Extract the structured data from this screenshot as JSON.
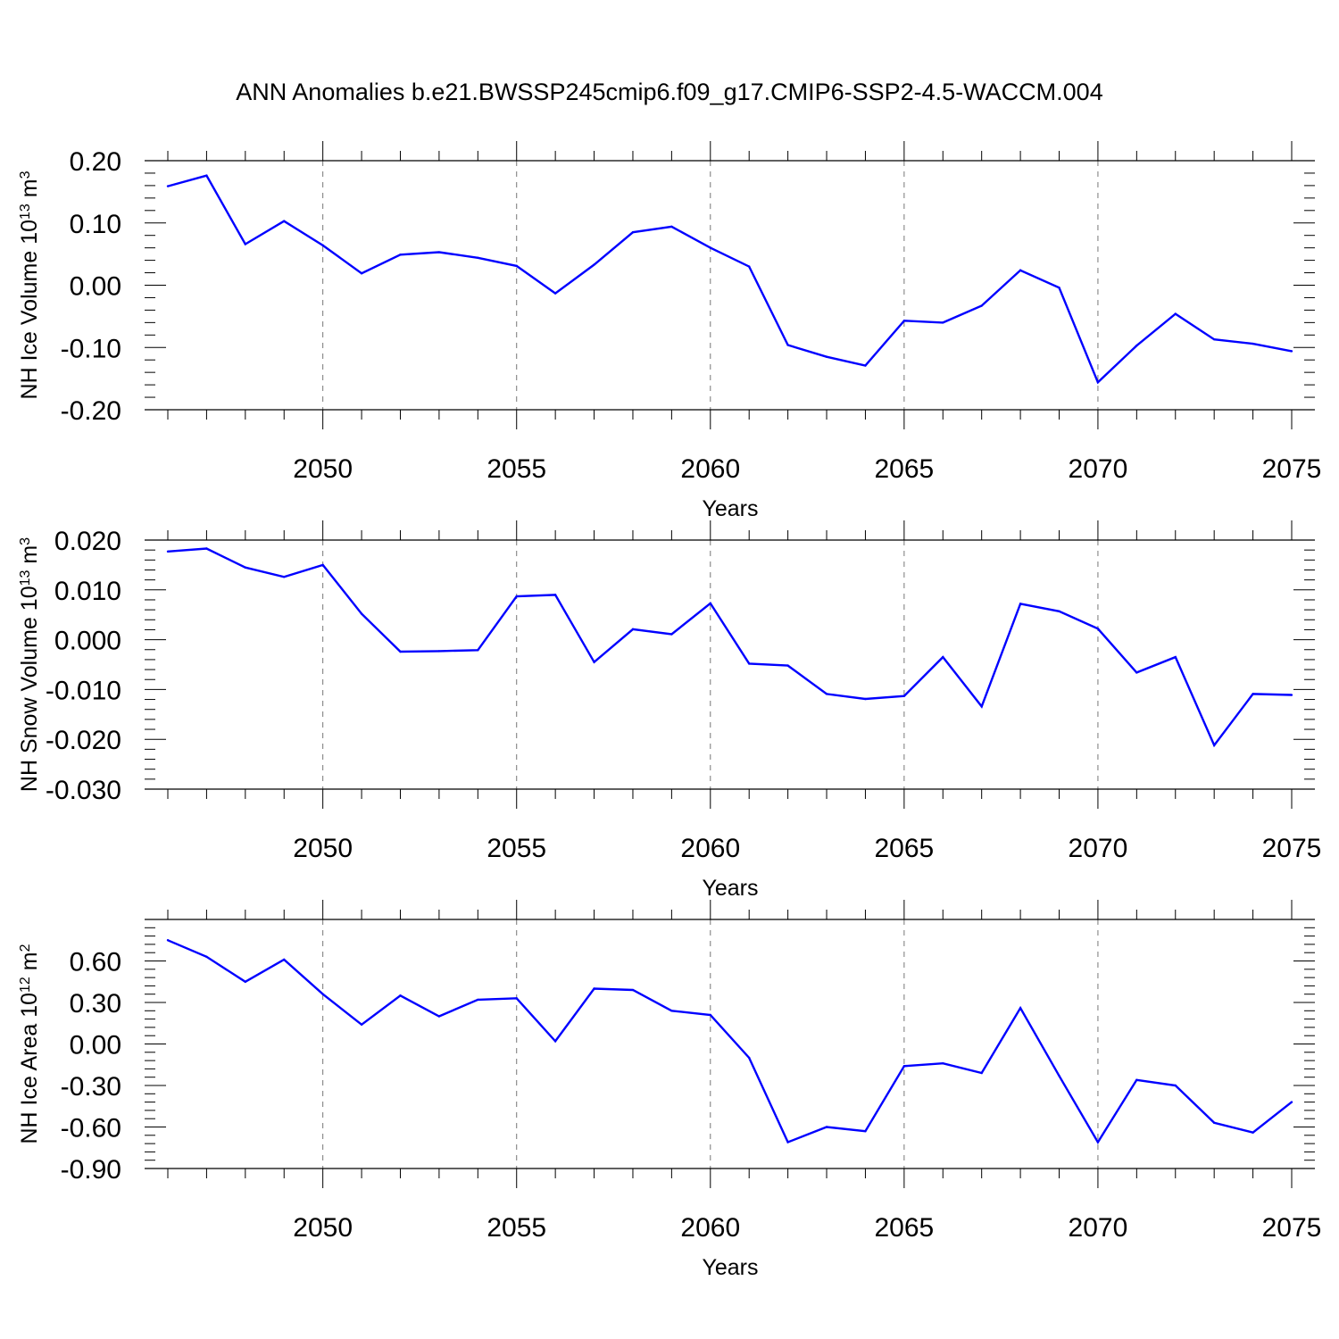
{
  "title": "ANN Anomalies b.e21.BWSSP245cmip6.f09_g17.CMIP6-SSP2-4.5-WACCM.004",
  "colors": {
    "line": "#0000ff",
    "axis": "#000000",
    "grid": "#777777"
  },
  "chart_data": [
    {
      "type": "line",
      "ylabel_main": "NH Ice Volume 10",
      "ylabel_exp": "13",
      "ylabel_unit": " m",
      "ylabel_unit_exp": "3",
      "xlabel": "Years",
      "xlim": [
        2046,
        2075
      ],
      "ylim": [
        -0.2,
        0.2
      ],
      "yticks": [
        -0.2,
        -0.1,
        0.0,
        0.1,
        0.2
      ],
      "ytick_labels": [
        "-0.20",
        "-0.10",
        "0.00",
        "0.10",
        "0.20"
      ],
      "xticks": [
        2050,
        2055,
        2060,
        2065,
        2070,
        2075
      ],
      "xtick_labels": [
        "2050",
        "2055",
        "2060",
        "2065",
        "2070",
        "2075"
      ],
      "x": [
        2046,
        2047,
        2048,
        2049,
        2050,
        2051,
        2052,
        2053,
        2054,
        2055,
        2056,
        2057,
        2058,
        2059,
        2060,
        2061,
        2062,
        2063,
        2064,
        2065,
        2066,
        2067,
        2068,
        2069,
        2070,
        2071,
        2072,
        2073,
        2074,
        2075
      ],
      "values": [
        0.159,
        0.176,
        0.066,
        0.103,
        0.064,
        0.019,
        0.049,
        0.053,
        0.044,
        0.031,
        -0.013,
        0.033,
        0.085,
        0.094,
        0.06,
        0.03,
        -0.096,
        -0.115,
        -0.129,
        -0.057,
        -0.06,
        -0.033,
        0.024,
        -0.004,
        -0.156,
        -0.097,
        -0.046,
        -0.087,
        -0.094,
        -0.106
      ]
    },
    {
      "type": "line",
      "ylabel_main": "NH Snow Volume 10",
      "ylabel_exp": "13",
      "ylabel_unit": " m",
      "ylabel_unit_exp": "3",
      "xlabel": "Years",
      "xlim": [
        2046,
        2075
      ],
      "ylim": [
        -0.03,
        0.02
      ],
      "yticks": [
        -0.03,
        -0.02,
        -0.01,
        0.0,
        0.01,
        0.02
      ],
      "ytick_labels": [
        "-0.030",
        "-0.020",
        "-0.010",
        "0.000",
        "0.010",
        "0.020"
      ],
      "xticks": [
        2050,
        2055,
        2060,
        2065,
        2070,
        2075
      ],
      "xtick_labels": [
        "2050",
        "2055",
        "2060",
        "2065",
        "2070",
        "2075"
      ],
      "x": [
        2046,
        2047,
        2048,
        2049,
        2050,
        2051,
        2052,
        2053,
        2054,
        2055,
        2056,
        2057,
        2058,
        2059,
        2060,
        2061,
        2062,
        2063,
        2064,
        2065,
        2066,
        2067,
        2068,
        2069,
        2070,
        2071,
        2072,
        2073,
        2074,
        2075
      ],
      "values": [
        0.0177,
        0.0183,
        0.0145,
        0.0126,
        0.015,
        0.0052,
        -0.0024,
        -0.0023,
        -0.0021,
        0.0087,
        0.009,
        -0.0045,
        0.0021,
        0.0011,
        0.0073,
        -0.0048,
        -0.0052,
        -0.0109,
        -0.0119,
        -0.0113,
        -0.0035,
        -0.0134,
        0.0072,
        0.0057,
        0.0022,
        -0.0066,
        -0.0035,
        -0.0212,
        -0.0109,
        -0.0111
      ]
    },
    {
      "type": "line",
      "ylabel_main": "NH Ice Area 10",
      "ylabel_exp": "12",
      "ylabel_unit": " m",
      "ylabel_unit_exp": "2",
      "xlabel": "Years",
      "xlim": [
        2046,
        2075
      ],
      "ylim": [
        -0.9,
        0.9
      ],
      "yticks": [
        -0.9,
        -0.6,
        -0.3,
        0.0,
        0.3,
        0.6
      ],
      "ytick_labels": [
        "-0.90",
        "-0.60",
        "-0.30",
        "0.00",
        "0.30",
        "0.60"
      ],
      "xticks": [
        2050,
        2055,
        2060,
        2065,
        2070,
        2075
      ],
      "xtick_labels": [
        "2050",
        "2055",
        "2060",
        "2065",
        "2070",
        "2075"
      ],
      "x": [
        2046,
        2047,
        2048,
        2049,
        2050,
        2051,
        2052,
        2053,
        2054,
        2055,
        2056,
        2057,
        2058,
        2059,
        2060,
        2061,
        2062,
        2063,
        2064,
        2065,
        2066,
        2067,
        2068,
        2069,
        2070,
        2071,
        2072,
        2073,
        2074,
        2075
      ],
      "values": [
        0.75,
        0.63,
        0.45,
        0.61,
        0.36,
        0.14,
        0.35,
        0.2,
        0.32,
        0.33,
        0.02,
        0.4,
        0.39,
        0.24,
        0.21,
        -0.1,
        -0.71,
        -0.6,
        -0.63,
        -0.16,
        -0.14,
        -0.21,
        0.26,
        -0.23,
        -0.71,
        -0.26,
        -0.3,
        -0.57,
        -0.64,
        -0.42
      ]
    }
  ]
}
